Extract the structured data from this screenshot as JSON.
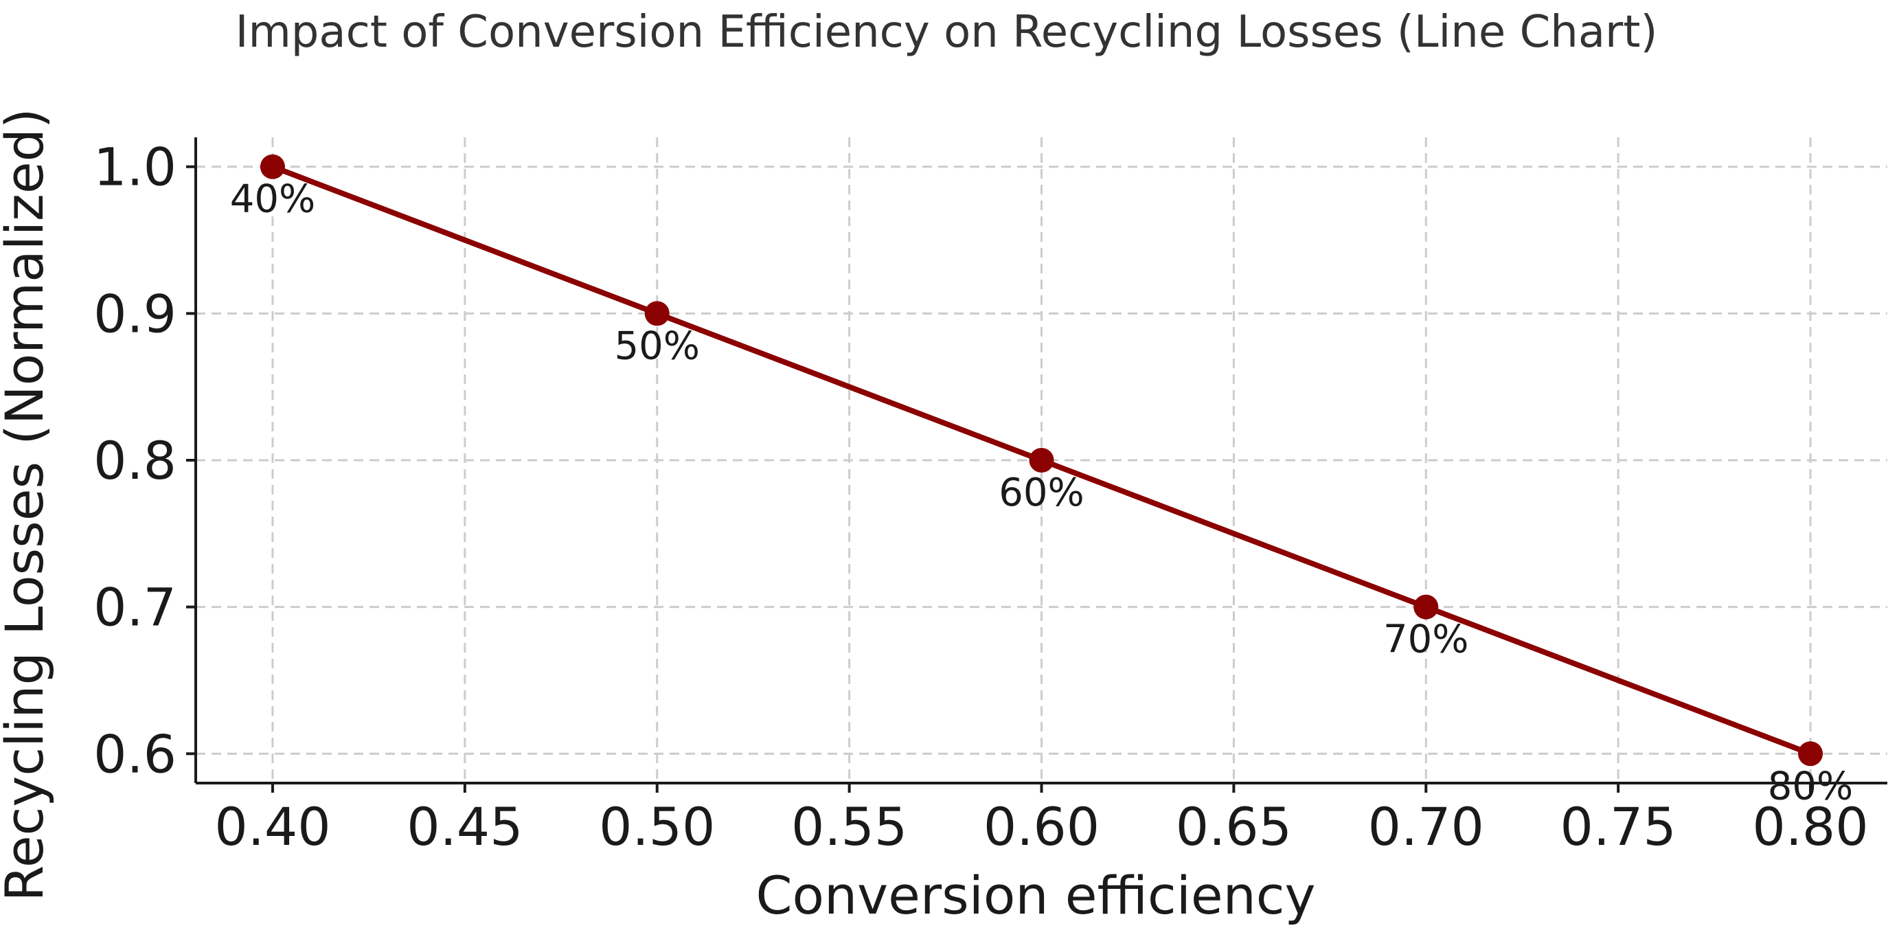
{
  "chart_data": {
    "type": "line",
    "title": "Impact of Conversion Efficiency on Recycling Losses (Line Chart)",
    "xlabel": "Conversion efficiency",
    "ylabel": "Recycling Losses (Normalized)",
    "xlim": [
      0.38,
      0.82
    ],
    "ylim": [
      0.58,
      1.02
    ],
    "x_ticks": [
      0.4,
      0.45,
      0.5,
      0.55,
      0.6,
      0.65,
      0.7,
      0.75,
      0.8
    ],
    "x_tick_labels": [
      "0.40",
      "0.45",
      "0.50",
      "0.55",
      "0.60",
      "0.65",
      "0.70",
      "0.75",
      "0.80"
    ],
    "y_ticks": [
      0.6,
      0.7,
      0.8,
      0.9,
      1.0
    ],
    "y_tick_labels": [
      "0.6",
      "0.7",
      "0.8",
      "0.9",
      "1.0"
    ],
    "grid": true,
    "series": [
      {
        "name": "Recycling Losses",
        "color": "#8b0000",
        "x": [
          0.4,
          0.5,
          0.6,
          0.7,
          0.8
        ],
        "y": [
          1.0,
          0.9,
          0.8,
          0.7,
          0.6
        ],
        "point_labels": [
          "40%",
          "50%",
          "60%",
          "70%",
          "80%"
        ]
      }
    ]
  }
}
